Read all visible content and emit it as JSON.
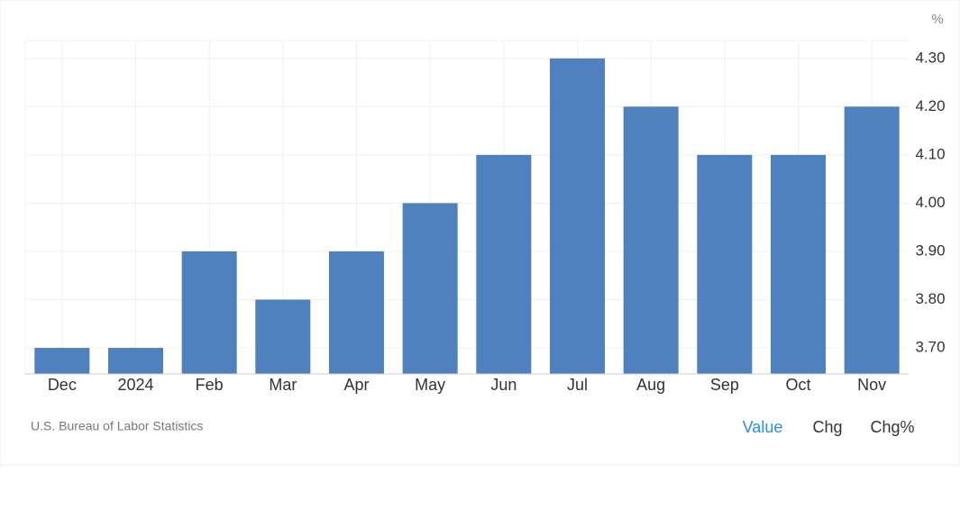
{
  "chart_data": {
    "type": "bar",
    "unit": "%",
    "source": "U.S. Bureau of Labor Statistics",
    "categories": [
      "Dec",
      "2024",
      "Feb",
      "Mar",
      "Apr",
      "May",
      "Jun",
      "Jul",
      "Aug",
      "Sep",
      "Oct",
      "Nov"
    ],
    "values": [
      3.7,
      3.7,
      3.9,
      3.8,
      3.9,
      4.0,
      4.1,
      4.3,
      4.2,
      4.1,
      4.1,
      4.2
    ],
    "color": "#4e81bd",
    "ylim": [
      3.646,
      4.337
    ],
    "yticks": [
      {
        "value": 3.7,
        "label": "3.70"
      },
      {
        "value": 3.8,
        "label": "3.80"
      },
      {
        "value": 3.9,
        "label": "3.90"
      },
      {
        "value": 4.0,
        "label": "4.00"
      },
      {
        "value": 4.1,
        "label": "4.10"
      },
      {
        "value": 4.2,
        "label": "4.20"
      },
      {
        "value": 4.3,
        "label": "4.30"
      }
    ],
    "grid": true
  },
  "controls": {
    "buttons": [
      "Value",
      "Chg",
      "Chg%"
    ],
    "active": 0
  }
}
